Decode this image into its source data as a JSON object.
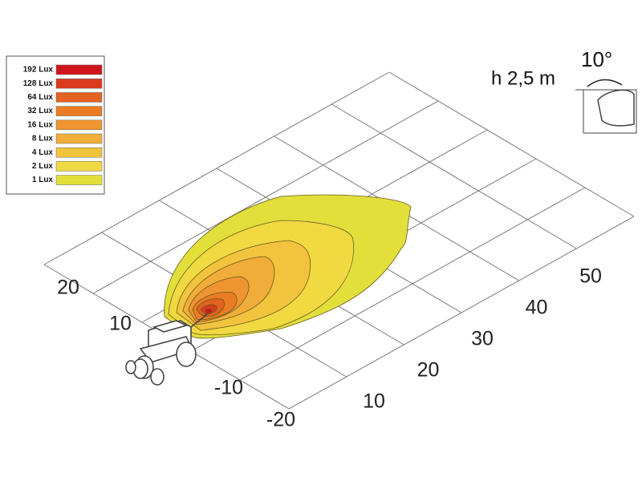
{
  "legend": {
    "items": [
      {
        "label": "192 Lux",
        "color": "#d0141b"
      },
      {
        "label": "128 Lux",
        "color": "#db3a1d"
      },
      {
        "label": "64 Lux",
        "color": "#e3621f"
      },
      {
        "label": "32 Lux",
        "color": "#ea7c24"
      },
      {
        "label": "16 Lux",
        "color": "#ee9531"
      },
      {
        "label": "8 Lux",
        "color": "#f1ad39"
      },
      {
        "label": "4 Lux",
        "color": "#f2c43d"
      },
      {
        "label": "2 Lux",
        "color": "#f1d941"
      },
      {
        "label": "1 Lux",
        "color": "#e2df3b"
      }
    ]
  },
  "axes": {
    "width_labels": [
      "20",
      "10",
      "-10",
      "-20"
    ],
    "length_labels": [
      "10",
      "20",
      "30",
      "40",
      "50"
    ]
  },
  "mounting": {
    "angle": "10°",
    "height": "h 2,5 m"
  }
}
